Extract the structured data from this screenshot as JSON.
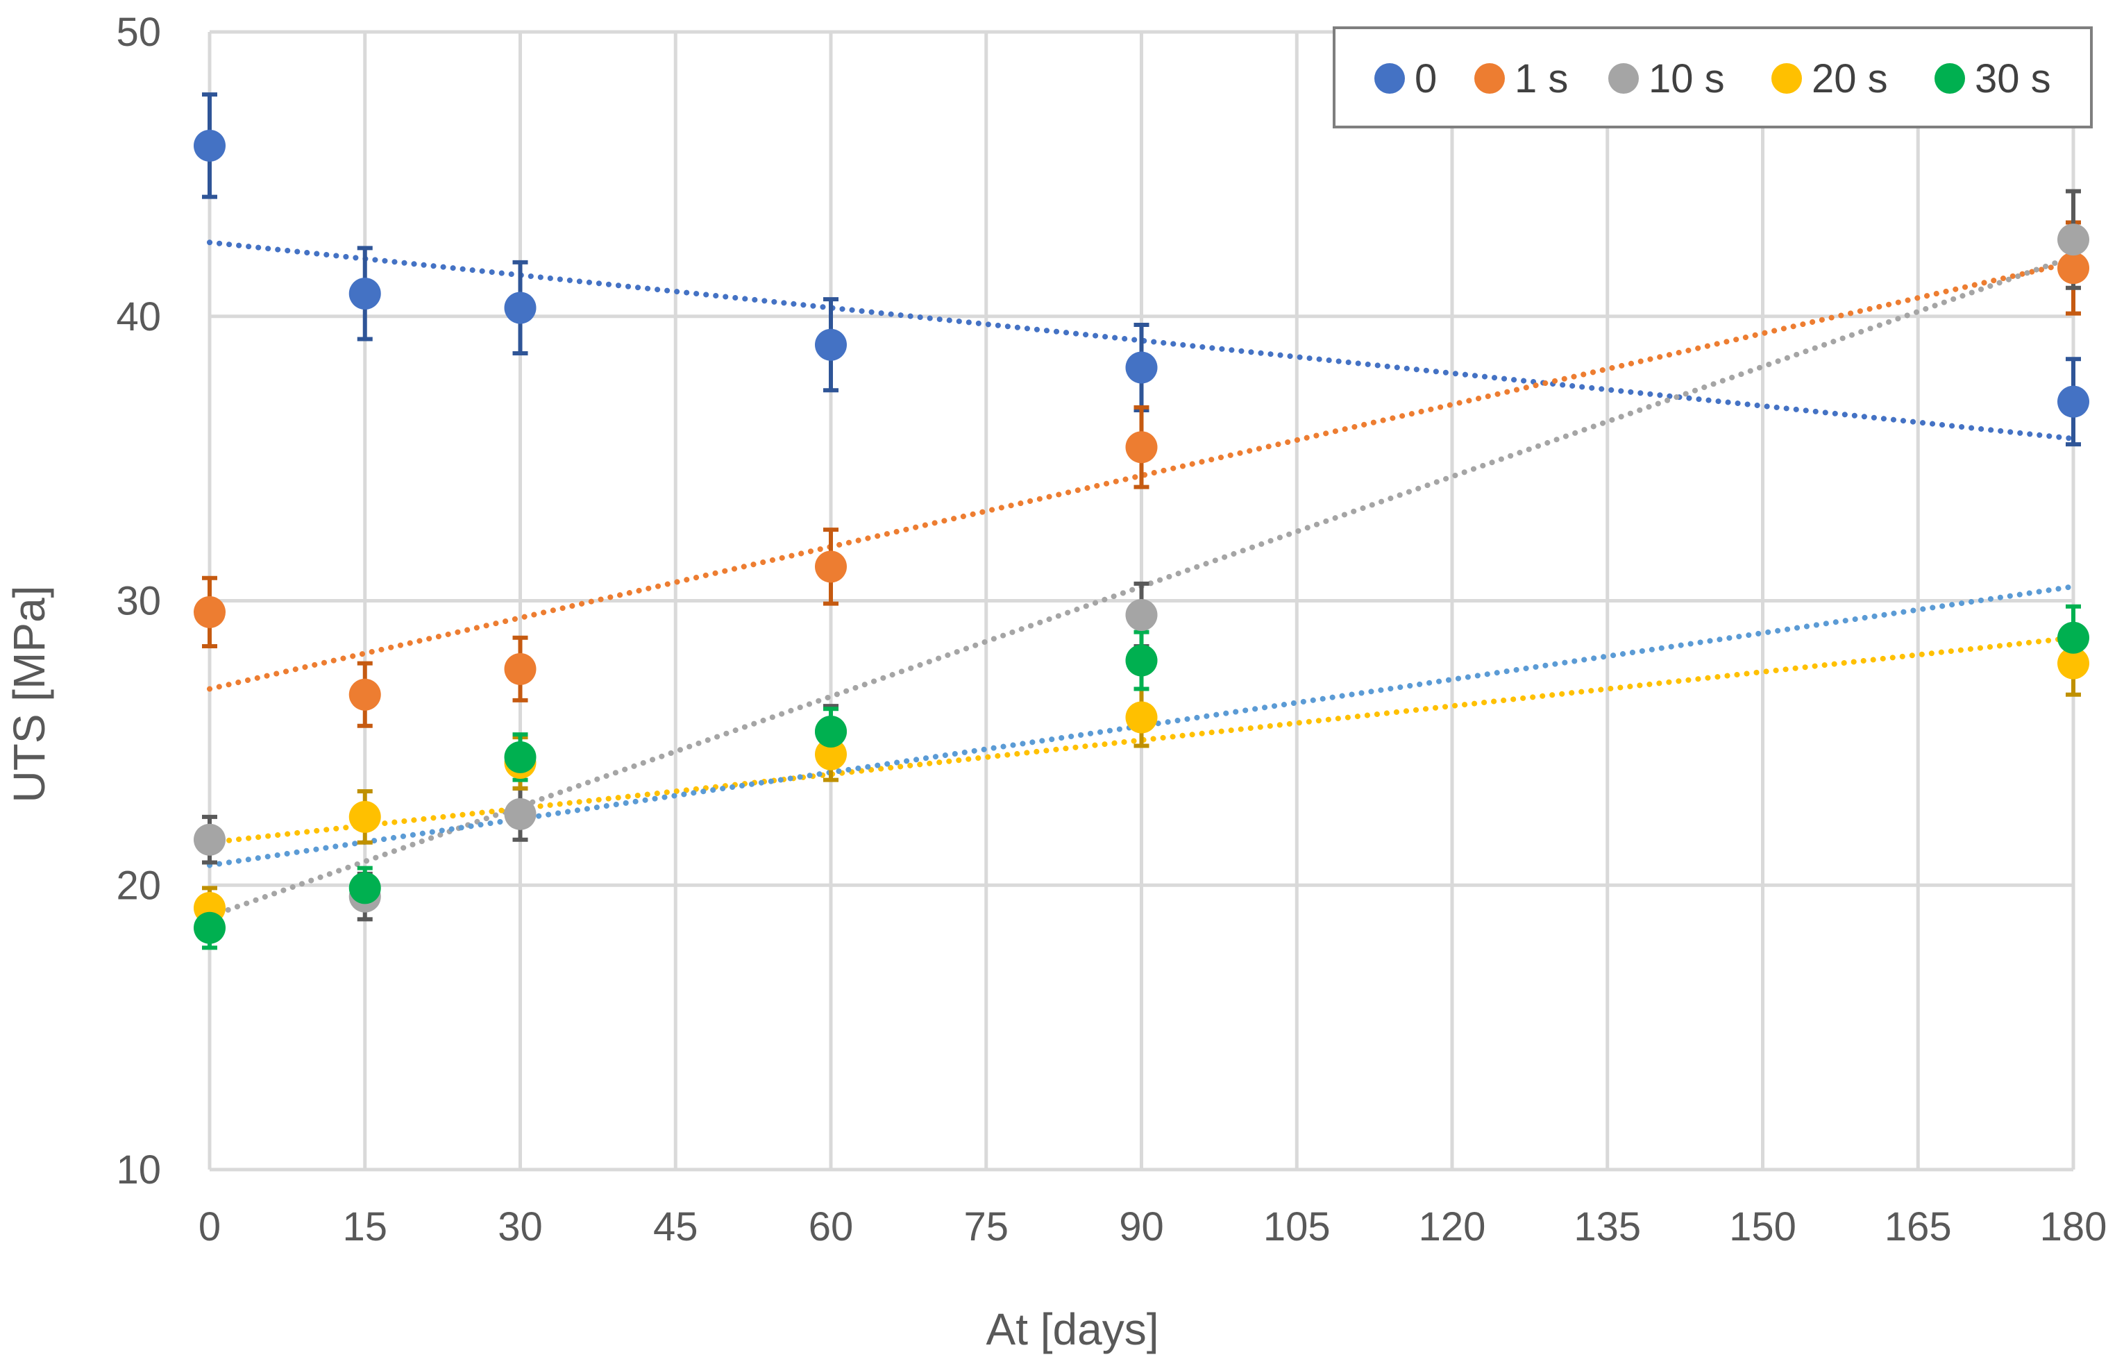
{
  "chart_data": {
    "type": "scatter",
    "xlabel": "At [days]",
    "ylabel": "UTS  [MPa]",
    "xlim": [
      0,
      180
    ],
    "ylim": [
      10,
      50
    ],
    "xticks": [
      0,
      15,
      30,
      45,
      60,
      75,
      90,
      105,
      120,
      135,
      150,
      165,
      180
    ],
    "yticks": [
      10,
      20,
      30,
      40,
      50
    ],
    "grid": true,
    "legend_position": "top-right",
    "series": [
      {
        "name": "0",
        "color": "#4472C4",
        "trend_color": "#4472C4",
        "error_color": "#2F5597",
        "x": [
          0,
          15,
          30,
          60,
          90,
          180
        ],
        "y": [
          46.0,
          40.8,
          40.3,
          39.0,
          38.2,
          37.0
        ],
        "error": [
          1.8,
          1.6,
          1.6,
          1.6,
          1.5,
          1.5
        ],
        "trendline": [
          [
            0,
            42.6
          ],
          [
            180,
            35.7
          ]
        ]
      },
      {
        "name": "1 s",
        "color": "#ED7D31",
        "trend_color": "#ED7D31",
        "error_color": "#C55A11",
        "x": [
          0,
          15,
          30,
          60,
          90,
          180
        ],
        "y": [
          29.6,
          26.7,
          27.6,
          31.2,
          35.4,
          41.7
        ],
        "error": [
          1.2,
          1.1,
          1.1,
          1.3,
          1.4,
          1.6
        ],
        "trendline": [
          [
            0,
            26.9
          ],
          [
            180,
            41.9
          ]
        ]
      },
      {
        "name": "10 s",
        "color": "#A5A5A5",
        "trend_color": "#A5A5A5",
        "error_color": "#595959",
        "x": [
          0,
          15,
          30,
          60,
          90,
          180
        ],
        "y": [
          21.6,
          19.6,
          22.5,
          25.4,
          29.5,
          42.7
        ],
        "error": [
          0.8,
          0.8,
          0.9,
          0.9,
          1.1,
          1.7
        ],
        "trendline": [
          [
            0,
            18.9
          ],
          [
            180,
            42.1
          ]
        ]
      },
      {
        "name": "20 s",
        "color": "#FFC000",
        "trend_color": "#FFC000",
        "error_color": "#BF9000",
        "x": [
          0,
          15,
          30,
          60,
          90,
          180
        ],
        "y": [
          19.2,
          22.4,
          24.3,
          24.6,
          25.9,
          27.8
        ],
        "error": [
          0.7,
          0.9,
          0.9,
          0.9,
          1.0,
          1.1
        ],
        "trendline": [
          [
            0,
            21.5
          ],
          [
            180,
            28.7
          ]
        ]
      },
      {
        "name": "30 s",
        "color": "#00B050",
        "trend_color": "#5B9BD5",
        "error_color": "#00B050",
        "x": [
          0,
          15,
          30,
          60,
          90,
          180
        ],
        "y": [
          18.5,
          19.9,
          24.5,
          25.4,
          27.9,
          28.7
        ],
        "error": [
          0.7,
          0.7,
          0.8,
          0.8,
          1.0,
          1.1
        ],
        "trendline": [
          [
            0,
            20.7
          ],
          [
            180,
            30.5
          ]
        ]
      }
    ]
  }
}
